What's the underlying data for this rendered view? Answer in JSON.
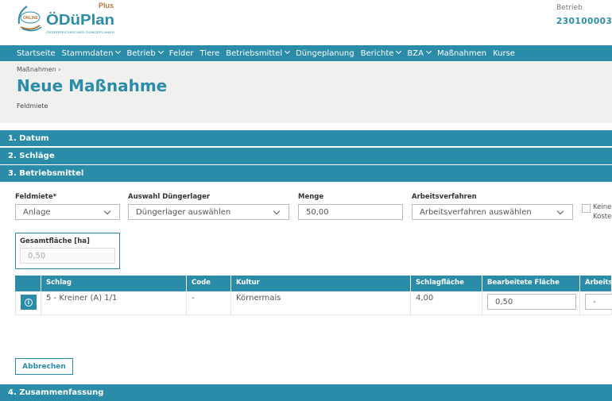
{
  "header": {
    "logo_text": "ÖDüPlan",
    "logo_plus": "Plus",
    "logo_online": "ONLINE",
    "logo_tagline": "ÖSTERREICHISCHER DÜNGEPLANER",
    "betrieb_label": "Betrieb",
    "betrieb_value": "230100003 -"
  },
  "nav": [
    {
      "label": "Startseite"
    },
    {
      "label": "Stammdaten",
      "dropdown": true
    },
    {
      "label": "Betrieb",
      "dropdown": true
    },
    {
      "label": "Felder"
    },
    {
      "label": "Tiere"
    },
    {
      "label": "Betriebsmittel",
      "dropdown": true
    },
    {
      "label": "Düngeplanung"
    },
    {
      "label": "Berichte",
      "dropdown": true
    },
    {
      "label": "BZA",
      "dropdown": true
    },
    {
      "label": "Maßnahmen"
    },
    {
      "label": "Kurse"
    }
  ],
  "page": {
    "breadcrumb": "Maßnahmen",
    "title": "Neue Maßnahme",
    "subtitle": "Feldmiete"
  },
  "sections": [
    "1. Datum",
    "2. Schläge",
    "3. Betriebsmittel",
    "4. Zusammenfassung"
  ],
  "form": {
    "feldmiete_label": "Feldmiete*",
    "feldmiete_value": "Anlage",
    "lager_label": "Auswahl Düngerlager",
    "lager_placeholder": "Düngerlager auswählen",
    "menge_label": "Menge",
    "menge_value": "50,00",
    "verfahren_label": "Arbeitsverfahren",
    "verfahren_placeholder": "Arbeitsverfahren auswählen",
    "keine_label_1": "Keine",
    "keine_label_2": "Koste",
    "gesamt_label": "Gesamtfläche [ha]",
    "gesamt_value": "0,50"
  },
  "table": {
    "headers": [
      "",
      "Schlag",
      "Code",
      "Kultur",
      "Schlagfläche",
      "Bearbeitete Fläche",
      "Arbeits"
    ],
    "rows": [
      {
        "schlag": "5 - Kreiner (A) 1/1",
        "code": "-",
        "kultur": "Körnermais",
        "flaeche": "4,00",
        "bearbeitet": "0,50",
        "arbeits": "-"
      }
    ]
  },
  "buttons": {
    "cancel": "Abbrechen"
  },
  "colors": {
    "primary": "#2a8ca8",
    "header_bg": "#f0f0ee",
    "logo_accent": "#b5763a"
  }
}
